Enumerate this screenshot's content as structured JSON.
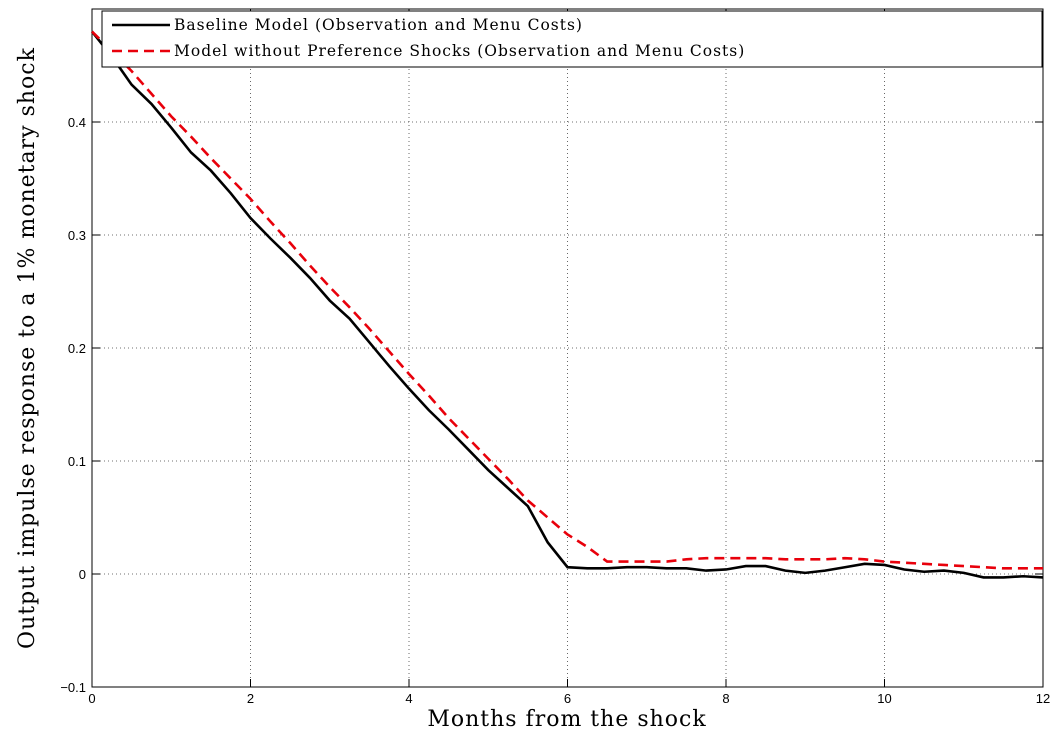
{
  "chart_data": {
    "type": "line",
    "xlabel": "Months from the shock",
    "ylabel": "Output impulse response to a 1% monetary shock",
    "x": [
      0,
      0.25,
      0.5,
      0.75,
      1,
      1.25,
      1.5,
      1.75,
      2,
      2.25,
      2.5,
      2.75,
      3,
      3.25,
      3.5,
      3.75,
      4,
      4.25,
      4.5,
      4.75,
      5,
      5.25,
      5.5,
      5.75,
      6,
      6.25,
      6.5,
      6.75,
      7,
      7.25,
      7.5,
      7.75,
      8,
      8.25,
      8.5,
      8.75,
      9,
      9.25,
      9.5,
      9.75,
      10,
      10.25,
      10.5,
      10.75,
      11,
      11.25,
      11.5,
      11.75,
      12
    ],
    "series": [
      {
        "name": "Baseline Model (Observation and Menu Costs)",
        "color": "#000000",
        "dash": false,
        "values": [
          0.48,
          0.458,
          0.433,
          0.416,
          0.395,
          0.373,
          0.357,
          0.337,
          0.315,
          0.297,
          0.28,
          0.262,
          0.242,
          0.226,
          0.205,
          0.184,
          0.164,
          0.145,
          0.128,
          0.11,
          0.092,
          0.076,
          0.06,
          0.028,
          0.006,
          0.005,
          0.005,
          0.006,
          0.006,
          0.005,
          0.005,
          0.003,
          0.004,
          0.007,
          0.007,
          0.003,
          0.001,
          0.003,
          0.006,
          0.009,
          0.008,
          0.004,
          0.002,
          0.003,
          0.001,
          -0.003,
          -0.003,
          -0.002,
          -0.003
        ]
      },
      {
        "name": "Model without Preference Shocks (Observation and Menu Costs)",
        "color": "#e8000b",
        "dash": true,
        "values": [
          0.48,
          0.463,
          0.445,
          0.425,
          0.405,
          0.387,
          0.368,
          0.35,
          0.332,
          0.312,
          0.293,
          0.273,
          0.254,
          0.236,
          0.217,
          0.197,
          0.177,
          0.158,
          0.138,
          0.12,
          0.102,
          0.084,
          0.065,
          0.05,
          0.035,
          0.024,
          0.011,
          0.011,
          0.011,
          0.011,
          0.013,
          0.014,
          0.014,
          0.014,
          0.014,
          0.013,
          0.013,
          0.013,
          0.014,
          0.013,
          0.011,
          0.01,
          0.009,
          0.008,
          0.007,
          0.006,
          0.005,
          0.005,
          0.005
        ]
      }
    ],
    "xlim": [
      0,
      12
    ],
    "xticks": [
      0,
      2,
      4,
      6,
      8,
      10,
      12
    ],
    "ylim": [
      -0.1,
      0.5
    ],
    "yticks": [
      {
        "value": -0.1,
        "label": "−0.1"
      },
      0,
      0.1,
      0.2,
      0.3,
      0.4
    ],
    "grid": true,
    "legend": "upper left"
  }
}
